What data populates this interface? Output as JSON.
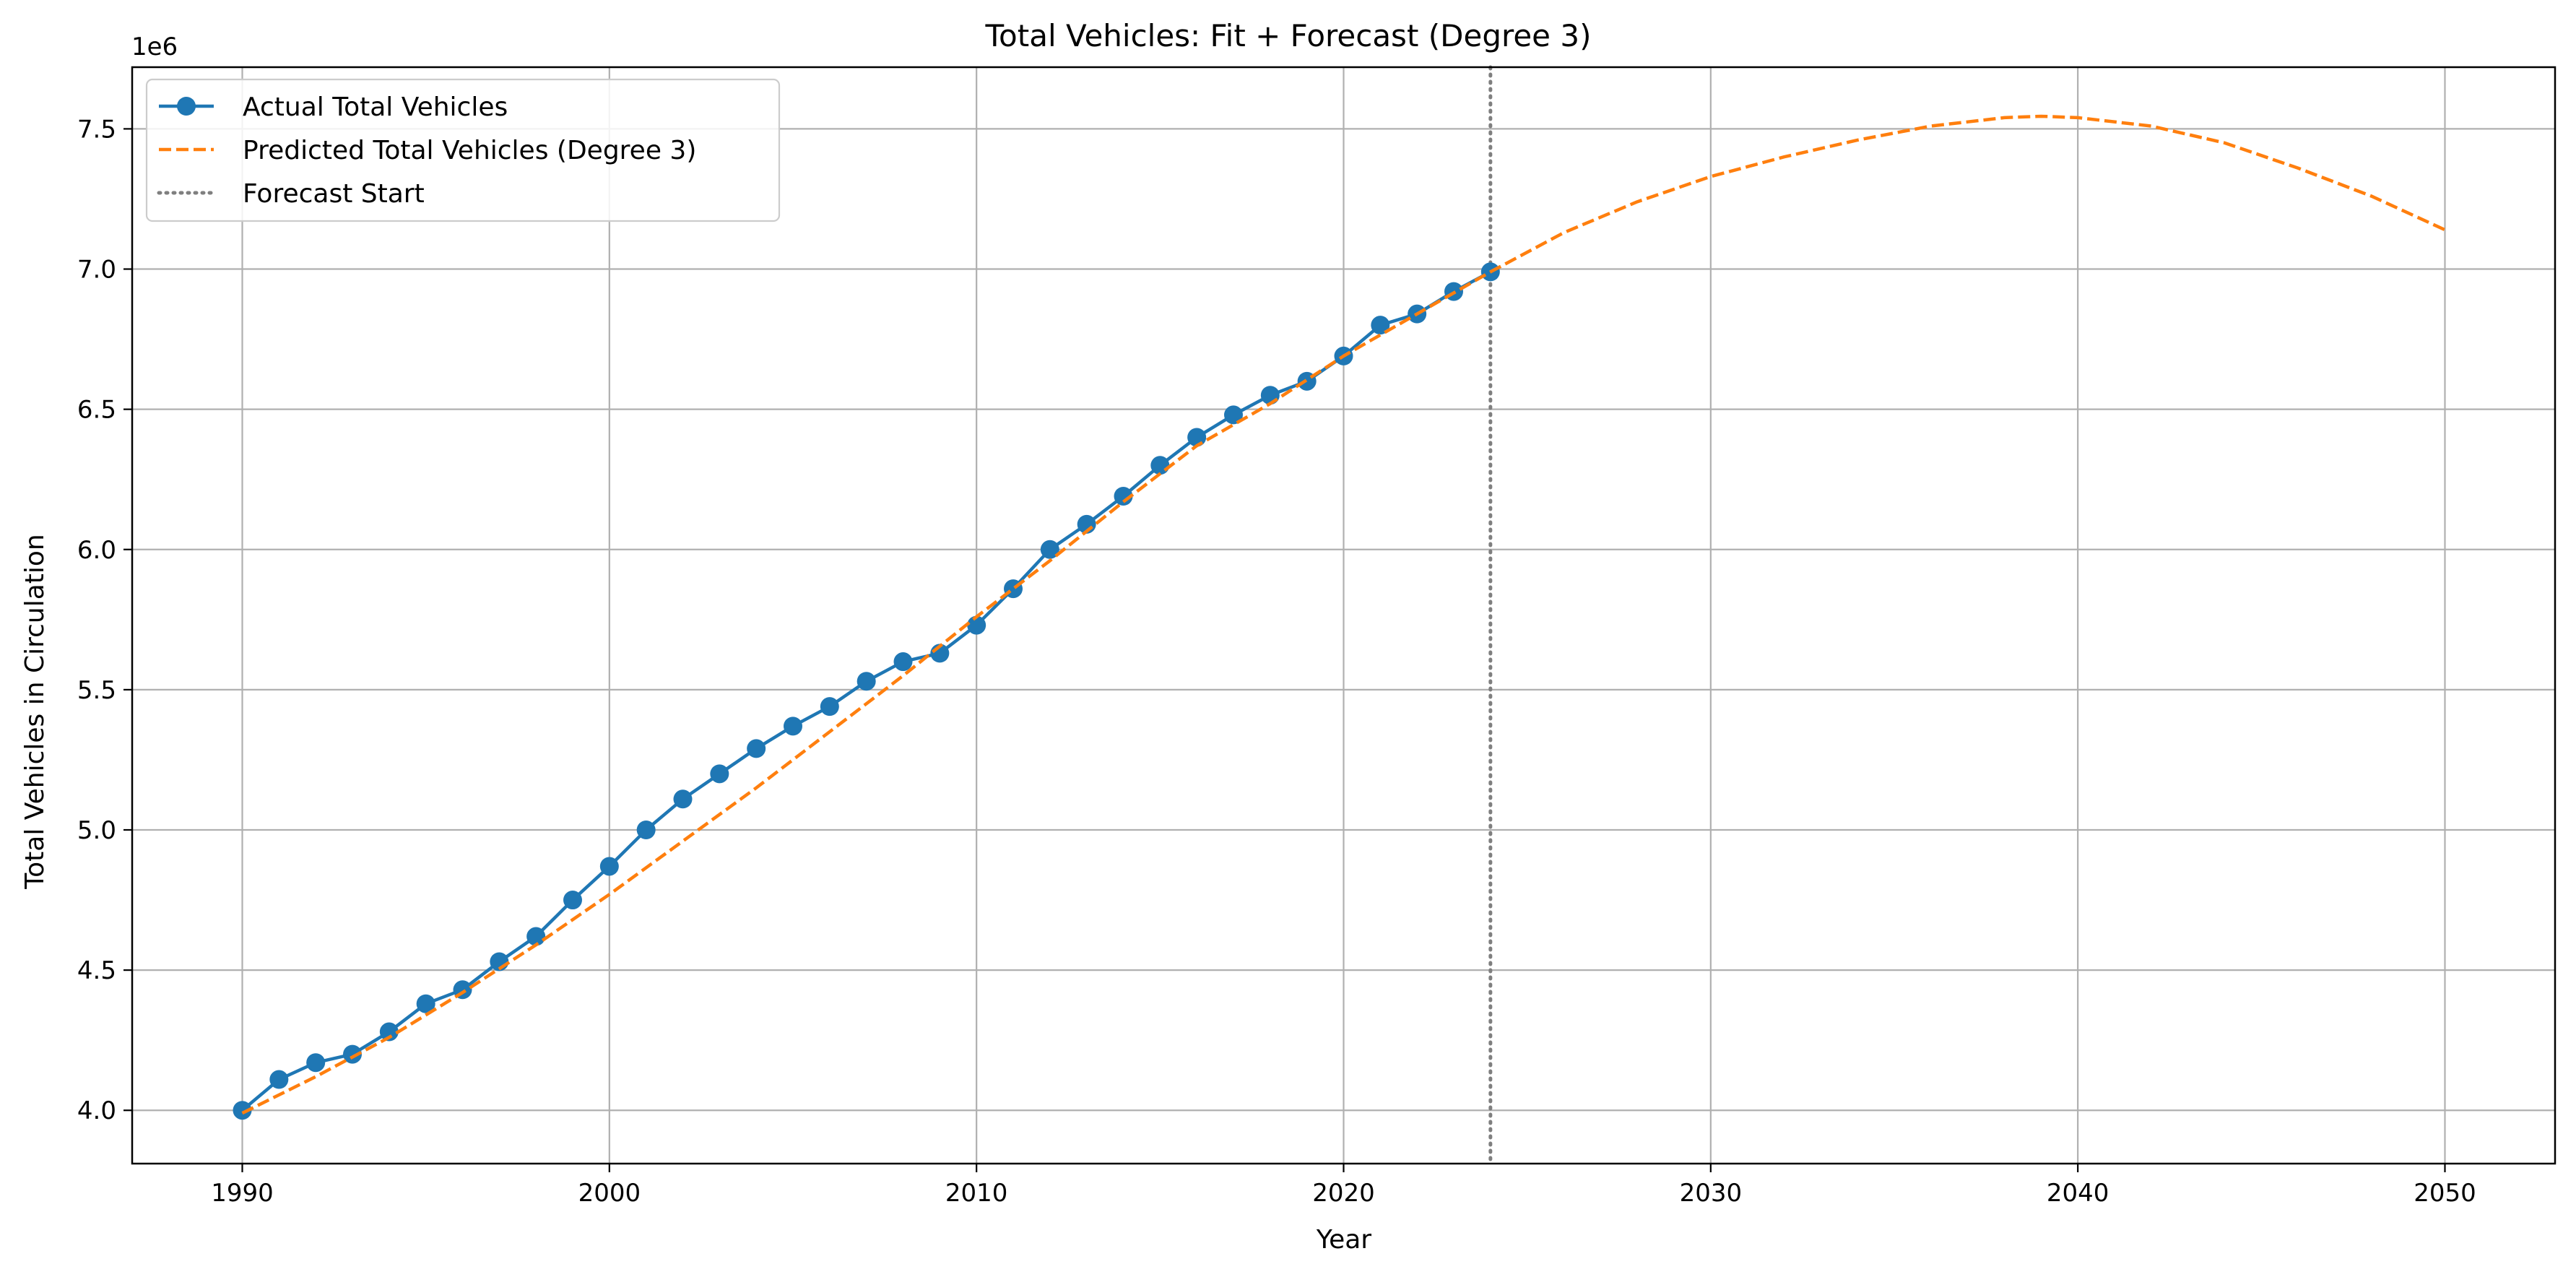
{
  "chart_data": {
    "type": "line",
    "title": "Total Vehicles: Fit + Forecast (Degree 3)",
    "xlabel": "Year",
    "ylabel": "Total Vehicles in Circulation",
    "y_offset_text": "1e6",
    "y_scale": 1000000,
    "xlim": [
      1987,
      2053
    ],
    "ylim": [
      3810000,
      7720000
    ],
    "x_ticks": [
      1990,
      2000,
      2010,
      2020,
      2030,
      2040,
      2050
    ],
    "y_ticks": [
      4000000,
      4500000,
      5000000,
      5500000,
      6000000,
      6500000,
      7000000,
      7500000
    ],
    "y_tick_labels": [
      "4.0",
      "4.5",
      "5.0",
      "5.5",
      "6.0",
      "6.5",
      "7.0",
      "7.5"
    ],
    "grid": true,
    "legend_position": "top-left",
    "forecast_start": 2024,
    "series": [
      {
        "name": "Actual Total Vehicles",
        "style": "solid-markers",
        "color": "#1f77b4",
        "x": [
          1990,
          1991,
          1992,
          1993,
          1994,
          1995,
          1996,
          1997,
          1998,
          1999,
          2000,
          2001,
          2002,
          2003,
          2004,
          2005,
          2006,
          2007,
          2008,
          2009,
          2010,
          2011,
          2012,
          2013,
          2014,
          2015,
          2016,
          2017,
          2018,
          2019,
          2020,
          2021,
          2022,
          2023,
          2024
        ],
        "y": [
          4000000,
          4110000,
          4170000,
          4200000,
          4280000,
          4380000,
          4430000,
          4530000,
          4620000,
          4750000,
          4870000,
          5000000,
          5110000,
          5200000,
          5290000,
          5370000,
          5440000,
          5530000,
          5600000,
          5630000,
          5730000,
          5860000,
          6000000,
          6090000,
          6190000,
          6300000,
          6400000,
          6480000,
          6550000,
          6600000,
          6690000,
          6800000,
          6840000,
          6920000,
          6990000
        ]
      },
      {
        "name": "Predicted Total Vehicles (Degree 3)",
        "style": "dashed",
        "color": "#ff7f0e",
        "x": [
          1990,
          1992,
          1994,
          1996,
          1998,
          2000,
          2002,
          2004,
          2006,
          2008,
          2010,
          2012,
          2014,
          2016,
          2018,
          2020,
          2022,
          2024,
          2026,
          2028,
          2030,
          2032,
          2034,
          2036,
          2038,
          2039,
          2040,
          2042,
          2044,
          2046,
          2048,
          2050
        ],
        "y": [
          3990000,
          4120000,
          4260000,
          4420000,
          4590000,
          4770000,
          4960000,
          5150000,
          5350000,
          5550000,
          5760000,
          5960000,
          6170000,
          6370000,
          6520000,
          6690000,
          6840000,
          6990000,
          7130000,
          7240000,
          7330000,
          7400000,
          7460000,
          7510000,
          7540000,
          7545000,
          7540000,
          7510000,
          7450000,
          7360000,
          7260000,
          7140000
        ]
      },
      {
        "name": "Forecast Start",
        "style": "dotted",
        "color": "#7f7f7f"
      }
    ]
  }
}
